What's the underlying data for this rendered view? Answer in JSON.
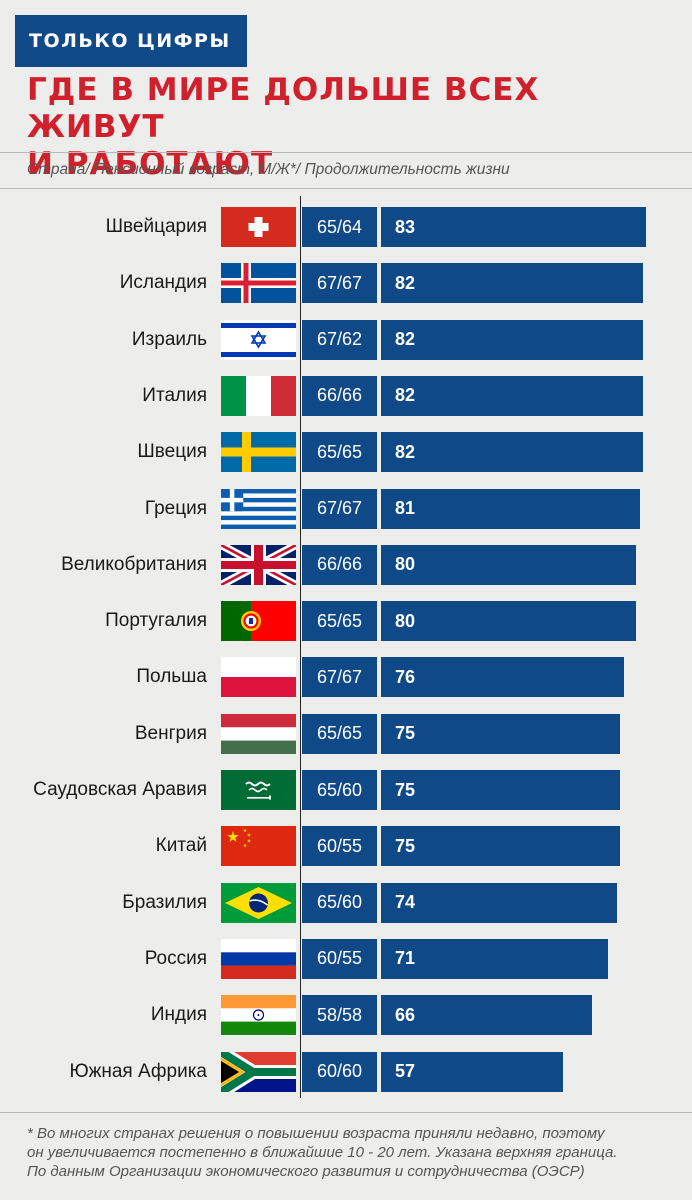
{
  "header": {
    "tag": "ТОЛЬКО ЦИФРЫ",
    "title": "ГДЕ В МИРЕ ДОЛЬШЕ ВСЕХ ЖИВУТ\nИ РАБОТАЮТ",
    "subtitle": "Страна/ Пенсионный возраст, М/Ж*/ Продолжительность жизни"
  },
  "chart_data": {
    "type": "bar",
    "orientation": "horizontal",
    "categories": [
      "Швейцария",
      "Исландия",
      "Израиль",
      "Италия",
      "Швеция",
      "Греция",
      "Великобритания",
      "Португалия",
      "Польша",
      "Венгрия",
      "Саудовская Аравия",
      "Китай",
      "Бразилия",
      "Россия",
      "Индия",
      "Южная Африка"
    ],
    "retirement_age": [
      "65/64",
      "67/67",
      "67/62",
      "66/66",
      "65/65",
      "67/67",
      "66/66",
      "65/65",
      "67/67",
      "65/65",
      "65/60",
      "60/55",
      "65/60",
      "60/55",
      "58/58",
      "60/60"
    ],
    "values": [
      83,
      82,
      82,
      82,
      82,
      81,
      80,
      80,
      76,
      75,
      75,
      75,
      74,
      71,
      66,
      57
    ],
    "flag_icons": [
      "flag-switzerland-icon",
      "flag-iceland-icon",
      "flag-israel-icon",
      "flag-italy-icon",
      "flag-sweden-icon",
      "flag-greece-icon",
      "flag-uk-icon",
      "flag-portugal-icon",
      "flag-poland-icon",
      "flag-hungary-icon",
      "flag-saudi-arabia-icon",
      "flag-china-icon",
      "flag-brazil-icon",
      "flag-russia-icon",
      "flag-india-icon",
      "flag-south-africa-icon"
    ],
    "bar_color": "#0f4988"
  },
  "footnote": [
    "* Во многих странах решения о повышении возраста приняли недавно, поэтому",
    "он увеличивается постепенно в ближайшие 10 - 20 лет. Указана верхняя граница.",
    "По данным Организации экономического развития и сотрудничества (ОЭСР)"
  ],
  "colors": {
    "accent_red": "#d0202b",
    "brand_blue": "#0f4988",
    "background": "#ededeb"
  }
}
